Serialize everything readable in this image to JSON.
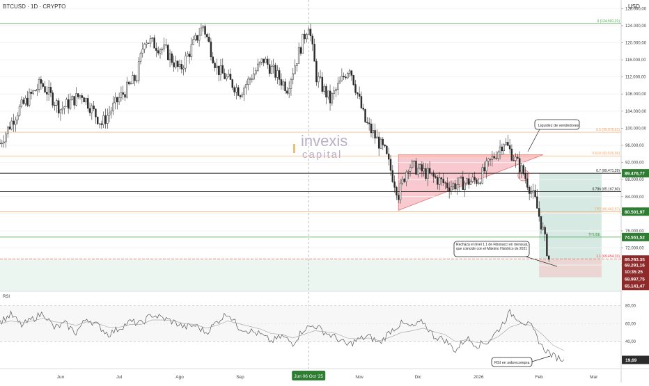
{
  "header": {
    "symbol_title": "BTCUSD · 1D · CRYPTO",
    "currency": "USD"
  },
  "watermark": {
    "line1": "invexis",
    "line2": "capital"
  },
  "colors": {
    "up": "#26a69a",
    "down": "#ef5350",
    "candle": "#2b2b2b",
    "accent_green": "#2e7d32",
    "accent_red": "#8e2a2a",
    "fib_orange": "#f4a261",
    "fib_green": "#43a047",
    "triangle_fill": "#f6b8bf",
    "long_zone": "#cfe6de",
    "stop_zone": "#ecd3d0",
    "rsi_line": "#555555"
  },
  "chart_data": [
    {
      "type": "candlestick",
      "title": "BTCUSD · 1D · CRYPTO",
      "y_unit": "USD",
      "ylim": [
        62000,
        130000
      ],
      "y_ticks": [
        "68.000,00",
        "72.000,00",
        "76.000,00",
        "80.000,00",
        "84.000,00",
        "88.000,00",
        "92.000,00",
        "96.000,00",
        "100.000,00",
        "104.000,00",
        "108.000,00",
        "112.000,00",
        "116.000,00",
        "120.000,00",
        "124.000,00",
        "128.000,00"
      ],
      "y_tick_values": [
        68000,
        72000,
        76000,
        80000,
        84000,
        88000,
        92000,
        96000,
        100000,
        104000,
        108000,
        112000,
        116000,
        120000,
        124000,
        128000
      ],
      "x_ticks": [
        "Jun",
        "Jul",
        "Ago",
        "Sep",
        "Nov",
        "Dic",
        "2026",
        "Feb",
        "Mar"
      ],
      "x_tick_dates": [
        "2025-06-01",
        "2025-07-01",
        "2025-08-01",
        "2025-09-01",
        "2025-11-01",
        "2025-12-01",
        "2026-01-01",
        "2026-02-01",
        "2026-03-01"
      ],
      "x_range": [
        "2025-05-01",
        "2026-03-15"
      ],
      "cursor_date_label": "Jun 06 Oct '25",
      "cursor_date": "2025-10-06",
      "close_path": [
        {
          "date": "2025-05-01",
          "close": 96500
        },
        {
          "date": "2025-05-10",
          "close": 104000
        },
        {
          "date": "2025-05-22",
          "close": 110500
        },
        {
          "date": "2025-06-01",
          "close": 104500
        },
        {
          "date": "2025-06-12",
          "close": 108000
        },
        {
          "date": "2025-06-22",
          "close": 101000
        },
        {
          "date": "2025-07-01",
          "close": 107000
        },
        {
          "date": "2025-07-10",
          "close": 112000
        },
        {
          "date": "2025-07-14",
          "close": 121000
        },
        {
          "date": "2025-07-25",
          "close": 118000
        },
        {
          "date": "2025-08-01",
          "close": 113500
        },
        {
          "date": "2025-08-13",
          "close": 124000
        },
        {
          "date": "2025-08-20",
          "close": 114000
        },
        {
          "date": "2025-09-01",
          "close": 108500
        },
        {
          "date": "2025-09-13",
          "close": 116000
        },
        {
          "date": "2025-09-25",
          "close": 109500
        },
        {
          "date": "2025-10-06",
          "close": 124500
        },
        {
          "date": "2025-10-10",
          "close": 112000
        },
        {
          "date": "2025-10-17",
          "close": 106500
        },
        {
          "date": "2025-10-27",
          "close": 114500
        },
        {
          "date": "2025-11-04",
          "close": 101500
        },
        {
          "date": "2025-11-14",
          "close": 94500
        },
        {
          "date": "2025-11-21",
          "close": 84500
        },
        {
          "date": "2025-11-26",
          "close": 91500
        },
        {
          "date": "2025-12-05",
          "close": 89500
        },
        {
          "date": "2025-12-17",
          "close": 86500
        },
        {
          "date": "2026-01-01",
          "close": 88000
        },
        {
          "date": "2026-01-14",
          "close": 97000
        },
        {
          "date": "2026-01-20",
          "close": 92500
        },
        {
          "date": "2026-01-24",
          "close": 89500
        },
        {
          "date": "2026-01-30",
          "close": 83000
        },
        {
          "date": "2026-02-03",
          "close": 76000
        },
        {
          "date": "2026-02-06",
          "close": 69300
        }
      ],
      "fib_levels": [
        {
          "label": "0 (124.501,21)",
          "value": 124501.21,
          "color": "#43a047"
        },
        {
          "label": "0.5 (99.078,61)",
          "value": 99078.61,
          "color": "#f4a261"
        },
        {
          "label": "0.618 (93.526,56)",
          "value": 93526.56,
          "color": "#f4a261"
        },
        {
          "label": "0.7 (89.471,29)",
          "value": 89471.29,
          "color": "#222222"
        },
        {
          "label": "0.786 (85.167,60)",
          "value": 85167.6,
          "color": "#222222"
        },
        {
          "label": "TP2 (80.462,97)",
          "value": 80462.97,
          "color": "#f4a261"
        },
        {
          "label": "TP1/BE",
          "value": 74551.52,
          "color": "#43a047"
        },
        {
          "label": "1.1 (69.454,33)",
          "value": 69454.33,
          "color": "#e53935"
        }
      ],
      "price_badges": [
        {
          "text": "89.476,77",
          "value": 89476.77,
          "color": "#2e7d32"
        },
        {
          "text": "80.501,97",
          "value": 80501.97,
          "color": "#2e7d32"
        },
        {
          "text": "74.551,52",
          "value": 74551.52,
          "color": "#2e7d32"
        },
        {
          "text": "69.293,35",
          "value": 69293.35,
          "color": "#8e2a2a"
        },
        {
          "text": "69.291,16",
          "value": 68000,
          "color": "#8e2a2a"
        },
        {
          "text": "10:35:25",
          "value": 66500,
          "color": "#8e2a2a"
        },
        {
          "text": "68.997,75",
          "value": 64800,
          "color": "#8e2a2a"
        },
        {
          "text": "65.141,47",
          "value": 63100,
          "color": "#8e2a2a"
        }
      ],
      "annotations": [
        {
          "text": "Liquidez de vendedores"
        },
        {
          "text": "Rechaza el nivel 1.1 de Fibonacci en mensual, que coincide con el Máximo Histórico de 2021"
        }
      ],
      "triangle": {
        "p1": [
          "2025-11-21",
          93800
        ],
        "p2": [
          "2026-02-03",
          93800
        ],
        "p3": [
          "2025-11-21",
          80800
        ]
      },
      "long_position": {
        "start": "2026-02-01",
        "end": "2026-03-05",
        "entry": 69293.35,
        "target": 89476.77,
        "stop": 65141.47
      },
      "support_zone": [
        62000,
        69300
      ]
    },
    {
      "type": "line",
      "series": [
        {
          "name": "RSI",
          "values": [
            62,
            70,
            58,
            65,
            72,
            55,
            60,
            50,
            66,
            58,
            48,
            55,
            62,
            60,
            70,
            66,
            62,
            56,
            58,
            50,
            62,
            72,
            56,
            52,
            48,
            40,
            46,
            38,
            54,
            58,
            50,
            44,
            36,
            42,
            46,
            38,
            52,
            60,
            56,
            62,
            46,
            42,
            30,
            44,
            36,
            40,
            54,
            72,
            64,
            56,
            34,
            24,
            20
          ]
        },
        {
          "name": "RSI smooth",
          "values": [
            60,
            63,
            61,
            63,
            66,
            62,
            61,
            58,
            62,
            60,
            56,
            56,
            59,
            59,
            64,
            64,
            63,
            60,
            59,
            55,
            58,
            63,
            60,
            57,
            54,
            49,
            48,
            44,
            48,
            52,
            51,
            49,
            44,
            43,
            44,
            41,
            45,
            50,
            52,
            55,
            51,
            48,
            40,
            42,
            39,
            40,
            46,
            56,
            60,
            58,
            48,
            36,
            30
          ]
        }
      ],
      "y_ticks": [
        "80,00",
        "60,00",
        "40,00"
      ],
      "y_tick_values": [
        80,
        60,
        40
      ],
      "ylim": [
        10,
        95
      ],
      "current_value_label": "19,69",
      "current_value": 19.69,
      "annotation": "RSI en sobrecompra"
    }
  ]
}
